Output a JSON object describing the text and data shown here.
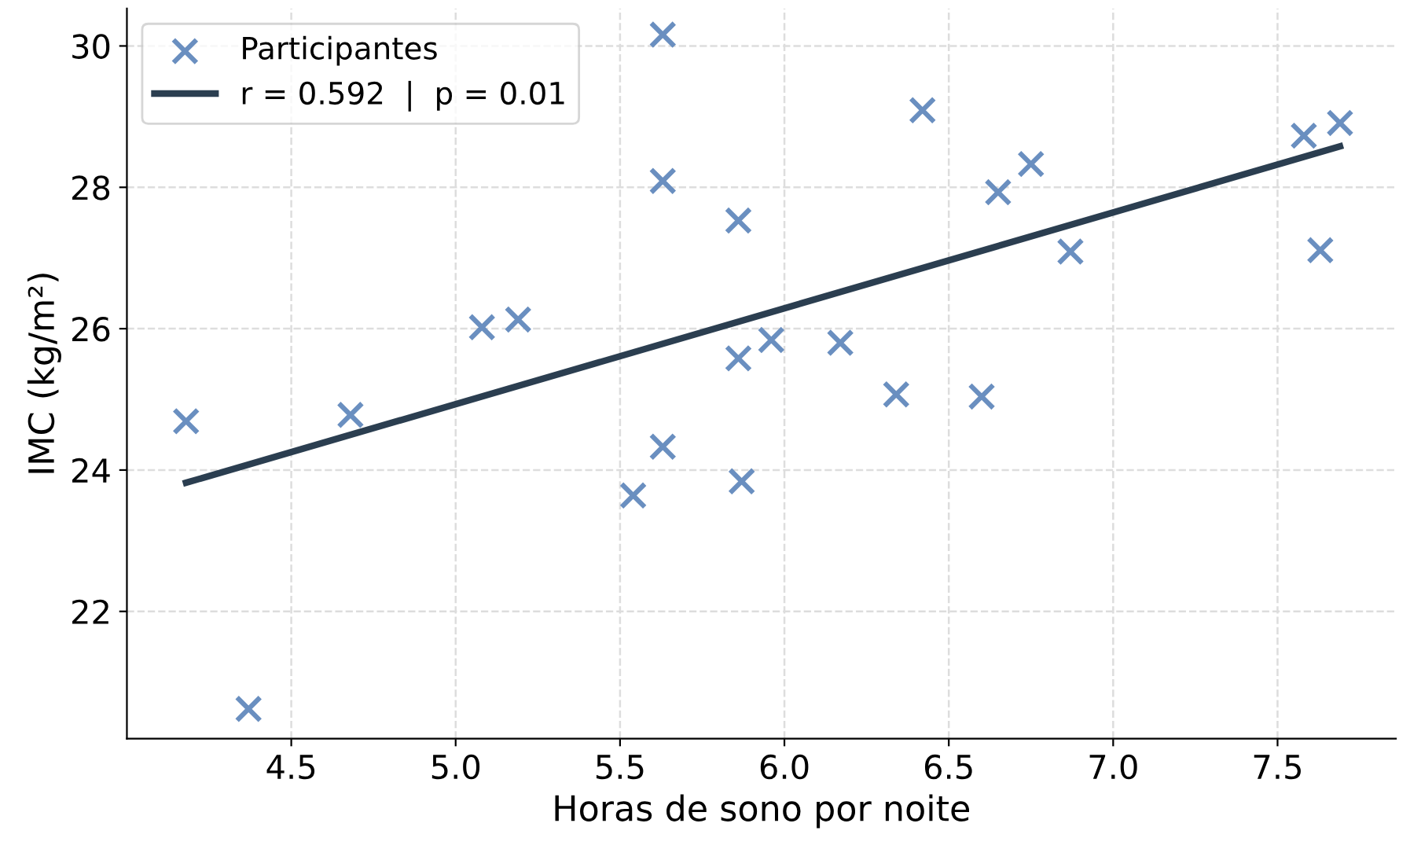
{
  "chart_data": {
    "type": "scatter",
    "xlabel": "Horas de sono por noite",
    "ylabel": "IMC (kg/m²)",
    "xlim": [
      4.0,
      7.86
    ],
    "ylim": [
      20.2,
      30.53
    ],
    "xticks": [
      4.5,
      {
        "value": 5,
        "label": "5.0"
      },
      5.5,
      {
        "value": 6,
        "label": "6.0"
      },
      6.5,
      {
        "value": 7,
        "label": "7.0"
      },
      7.5
    ],
    "yticks": [
      22,
      24,
      26,
      28,
      30
    ],
    "grid": true,
    "legend": "top left",
    "series": [
      {
        "name": "Participantes",
        "marker": "cross",
        "color": "#6a8fc0",
        "x": [
          4.18,
          4.37,
          4.68,
          5.08,
          5.19,
          5.54,
          5.63,
          5.63,
          5.63,
          5.86,
          5.86,
          5.87,
          5.96,
          6.17,
          6.34,
          6.42,
          6.6,
          6.65,
          6.75,
          6.87,
          7.58,
          7.63,
          7.69
        ],
        "values": [
          24.69,
          20.62,
          24.78,
          26.02,
          26.13,
          23.64,
          30.16,
          28.09,
          24.33,
          27.53,
          25.58,
          23.84,
          25.84,
          25.8,
          25.07,
          29.09,
          25.04,
          27.93,
          28.33,
          27.09,
          28.73,
          27.11,
          28.91
        ]
      },
      {
        "name": "r = 0.592  |  p = 0.01",
        "type": "line",
        "line_style": "solid",
        "color": "#2b3e50",
        "x": [
          4.18,
          7.69
        ],
        "values": [
          23.82,
          28.58
        ]
      }
    ]
  }
}
